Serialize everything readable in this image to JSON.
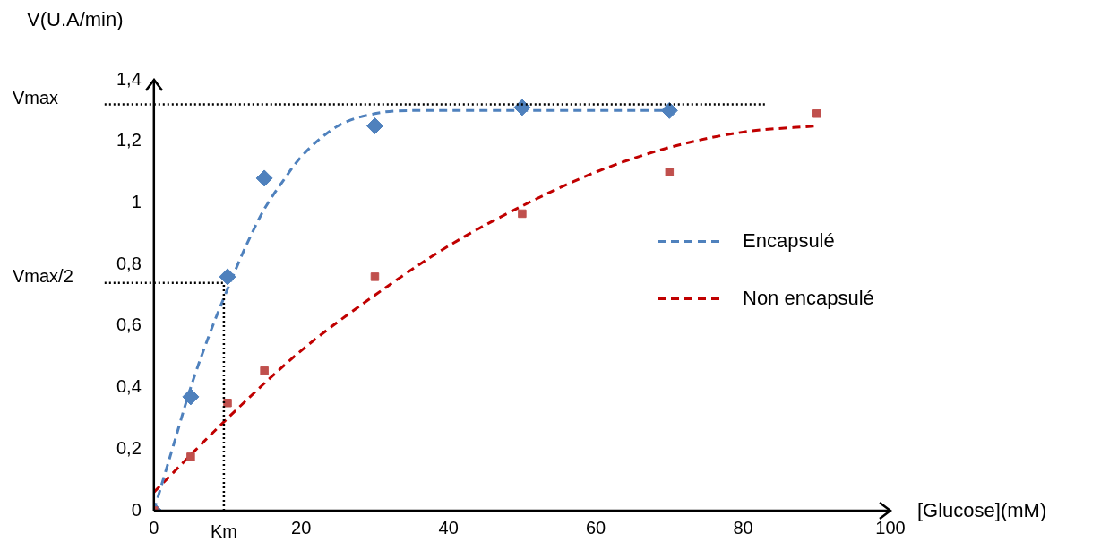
{
  "chart_data": {
    "type": "scatter",
    "xlabel": "[Glucose](mM)",
    "ylabel": "V(U.A/min)",
    "xlim": [
      0,
      100
    ],
    "xticks": [
      0,
      20,
      40,
      60,
      80,
      100
    ],
    "ylim": [
      0,
      1.4
    ],
    "yticks": [
      0,
      {
        "value": 0.2,
        "label": "0,2"
      },
      {
        "value": 0.4,
        "label": "0,4"
      },
      {
        "value": 0.6,
        "label": "0,6"
      },
      {
        "value": 0.8,
        "label": "0,8"
      },
      1,
      {
        "value": 1.2,
        "label": "1,2"
      },
      {
        "value": 1.4,
        "label": "1,4"
      }
    ],
    "grid": false,
    "legend": "right",
    "series": [
      {
        "marker": "diamond",
        "color": "#4f81bd",
        "x": [
          0,
          5,
          10,
          15,
          30,
          50,
          70
        ],
        "values": [
          0,
          0.37,
          0.76,
          1.08,
          1.25,
          1.31,
          1.3
        ]
      },
      {
        "marker": "square",
        "color": "#c0504d",
        "x": [
          0,
          5,
          10,
          15,
          30,
          50,
          70,
          90
        ],
        "values": [
          0,
          0.175,
          0.35,
          0.455,
          0.76,
          0.965,
          1.1,
          1.29
        ]
      },
      {
        "type": "line",
        "name": "Encapsulé",
        "line_style": "dashed",
        "marker": "none",
        "color": "#4f81bd",
        "x": [
          0,
          2.5,
          5,
          7.5,
          10,
          12.5,
          15,
          17.5,
          20,
          25,
          30,
          35,
          50,
          70
        ],
        "values": [
          0,
          0.2,
          0.4,
          0.57,
          0.72,
          0.86,
          0.98,
          1.07,
          1.15,
          1.25,
          1.29,
          1.3,
          1.3,
          1.3
        ]
      },
      {
        "type": "line",
        "name": "Non encapsulé",
        "line_style": "dashed",
        "marker": "none",
        "color": "#c00000",
        "x": [
          0,
          10,
          20,
          30,
          40,
          50,
          60,
          70,
          80,
          90
        ],
        "values": [
          0.06,
          0.3,
          0.52,
          0.7,
          0.86,
          0.99,
          1.1,
          1.18,
          1.23,
          1.25
        ]
      }
    ],
    "ref_lines": [
      {
        "axis": "y",
        "value": 1.32,
        "label": "Vmax",
        "line_style": "dotted",
        "color": "#000000"
      },
      {
        "axis": "y",
        "value": 0.74,
        "label": "Vmax/2",
        "line_style": "dotted",
        "color": "#000000"
      },
      {
        "axis": "x",
        "value": 9.5,
        "label": "Km",
        "line_style": "dotted",
        "color": "#000000"
      }
    ]
  }
}
